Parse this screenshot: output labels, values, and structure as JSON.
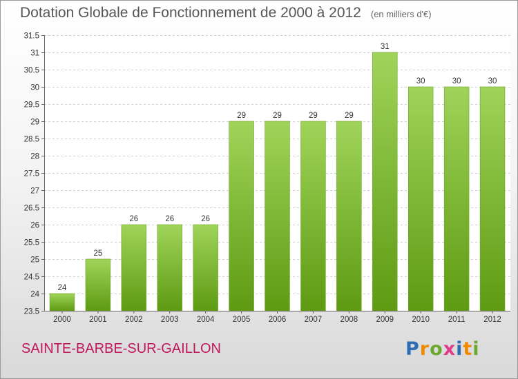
{
  "title": "Dotation Globale de Fonctionnement de 2000 à 2012",
  "unit": "(en milliers d'€)",
  "commune": "SAINTE-BARBE-SUR-GAILLON",
  "logo": {
    "letters": [
      "P",
      "r",
      "o",
      "x",
      "i",
      "t",
      "i"
    ],
    "colors": [
      "#2f6db5",
      "#f08a00",
      "#6aa82e",
      "#e03c8a",
      "#2f6db5",
      "#f08a00",
      "#6aa82e"
    ]
  },
  "chart_data": {
    "type": "bar",
    "categories": [
      "2000",
      "2001",
      "2002",
      "2003",
      "2004",
      "2005",
      "2006",
      "2007",
      "2008",
      "2009",
      "2010",
      "2011",
      "2012"
    ],
    "values": [
      24,
      25,
      26,
      26,
      26,
      29,
      29,
      29,
      29,
      31,
      30,
      30,
      30
    ],
    "ylim": [
      23.5,
      31.5
    ],
    "yticks": [
      23.5,
      24,
      24.5,
      25,
      25.5,
      26,
      26.5,
      27,
      27.5,
      28,
      28.5,
      29,
      29.5,
      30,
      30.5,
      31,
      31.5
    ],
    "ytick_labels": [
      "23.5",
      "24",
      "24.5",
      "25",
      "25.5",
      "26",
      "26.5",
      "27",
      "27.5",
      "28",
      "28.5",
      "29",
      "29.5",
      "30",
      "30.5",
      "31",
      "31.5"
    ],
    "grid": true,
    "bar_color_top": "#9fd45a",
    "bar_color_bottom": "#5e9a12"
  }
}
